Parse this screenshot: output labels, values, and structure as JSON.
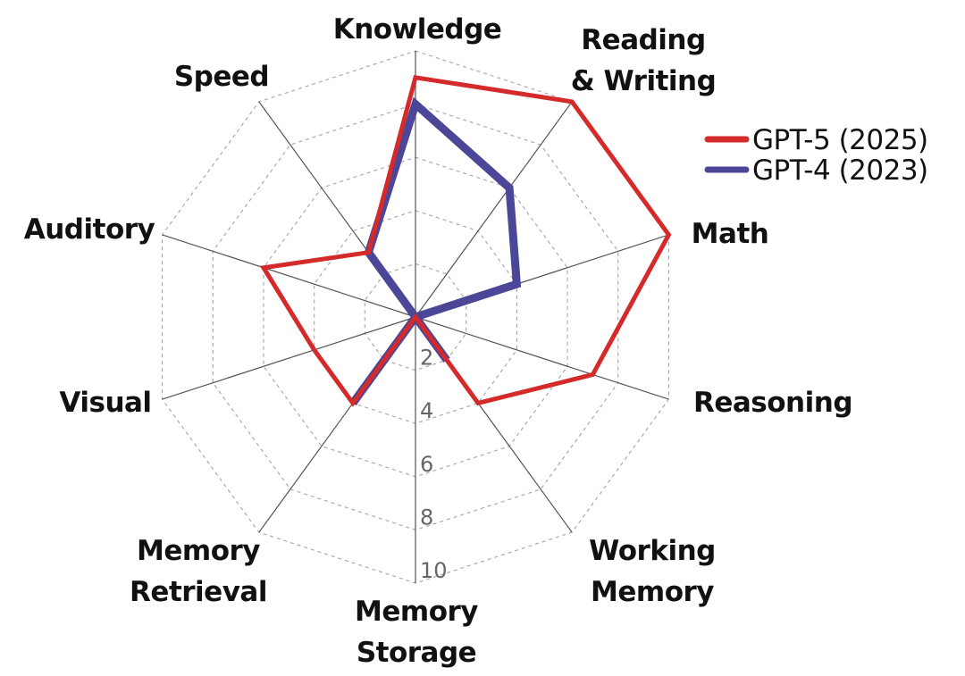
{
  "chart_data": {
    "type": "radar",
    "axes": [
      "Knowledge",
      "Reading & Writing",
      "Math",
      "Reasoning",
      "Working Memory",
      "Memory Storage",
      "Memory Retrieval",
      "Visual",
      "Auditory",
      "Speed"
    ],
    "axis_label_lines": [
      [
        "Knowledge"
      ],
      [
        "Reading",
        "& Writing"
      ],
      [
        "Math"
      ],
      [
        "Reasoning"
      ],
      [
        "Working",
        "Memory"
      ],
      [
        "Memory",
        "Storage"
      ],
      [
        "Memory",
        "Retrieval"
      ],
      [
        "Visual"
      ],
      [
        "Auditory"
      ],
      [
        "Speed"
      ]
    ],
    "rlim": [
      0,
      10
    ],
    "ticks": [
      "2",
      "4",
      "6",
      "8",
      "10"
    ],
    "grid": true,
    "legend_position": "right",
    "series": [
      {
        "name": "GPT-5 (2025)",
        "color": "#d42a2a",
        "values": [
          9,
          10,
          10,
          7,
          4,
          0,
          4,
          4,
          6,
          3
        ]
      },
      {
        "name": "GPT-4 (2023)",
        "color": "#4b4697",
        "values": [
          8,
          6,
          4,
          0,
          2,
          0,
          4,
          0,
          0,
          3
        ]
      }
    ]
  }
}
